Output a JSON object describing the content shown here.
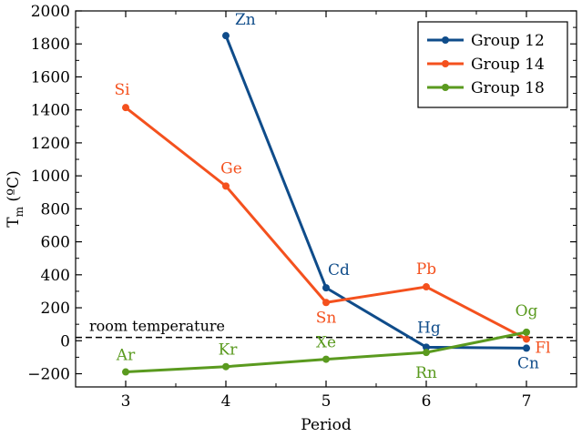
{
  "chart_data": {
    "type": "line",
    "xlabel": "Period",
    "ylabel": "T",
    "ylabel_sub": "m",
    "ylabel_unit": " (ºC)",
    "xlim": [
      2.5,
      7.5
    ],
    "ylim": [
      -280,
      2000
    ],
    "xticks": [
      3,
      4,
      5,
      6,
      7
    ],
    "yticks": [
      -200,
      0,
      200,
      400,
      600,
      800,
      1000,
      1200,
      1400,
      1600,
      1800,
      2000
    ],
    "legend_position": "top-right",
    "grid": false,
    "reference_line": {
      "y": 20,
      "label": "room temperature",
      "style": "dashed"
    },
    "series": [
      {
        "name": "Group 12",
        "color": "#0f4c8a",
        "x": [
          4,
          5,
          6,
          7
        ],
        "y": [
          1850,
          321,
          -39,
          -45
        ],
        "labels": [
          "Zn",
          "Cd",
          "Hg",
          "Cn"
        ]
      },
      {
        "name": "Group 14",
        "color": "#f4511e",
        "x": [
          3,
          4,
          5,
          6,
          7
        ],
        "y": [
          1414,
          938,
          232,
          327,
          10
        ],
        "labels": [
          "Si",
          "Ge",
          "Sn",
          "Pb",
          "Fl"
        ]
      },
      {
        "name": "Group 18",
        "color": "#5a9a1f",
        "x": [
          3,
          4,
          5,
          6,
          7
        ],
        "y": [
          -189,
          -157,
          -112,
          -71,
          52
        ],
        "labels": [
          "Ar",
          "Kr",
          "Xe",
          "Rn",
          "Og"
        ]
      }
    ]
  }
}
